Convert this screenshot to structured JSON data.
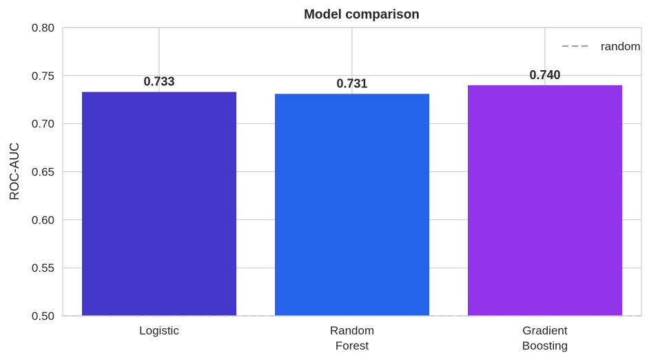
{
  "chart_data": {
    "type": "bar",
    "title": "Model comparison",
    "xlabel": "",
    "ylabel": "ROC-AUC",
    "categories": [
      [
        "Logistic"
      ],
      [
        "Random",
        "Forest"
      ],
      [
        "Gradient",
        "Boosting"
      ]
    ],
    "values": [
      0.733,
      0.731,
      0.74
    ],
    "value_labels": [
      "0.733",
      "0.731",
      "0.740"
    ],
    "bar_colors": [
      "#4338ca",
      "#2563eb",
      "#9333ea"
    ],
    "ylim": [
      0.5,
      0.8
    ],
    "yticks": [
      0.5,
      0.55,
      0.6,
      0.65,
      0.7,
      0.75,
      0.8
    ],
    "ytick_labels": [
      "0.50",
      "0.55",
      "0.60",
      "0.65",
      "0.70",
      "0.75",
      "0.80"
    ],
    "grid": true,
    "reference_line": {
      "value": 0.5,
      "label": "random",
      "style": "dashed",
      "color": "#8fa3b5"
    },
    "legend": {
      "position": "top-right",
      "entries": [
        "random"
      ]
    }
  }
}
